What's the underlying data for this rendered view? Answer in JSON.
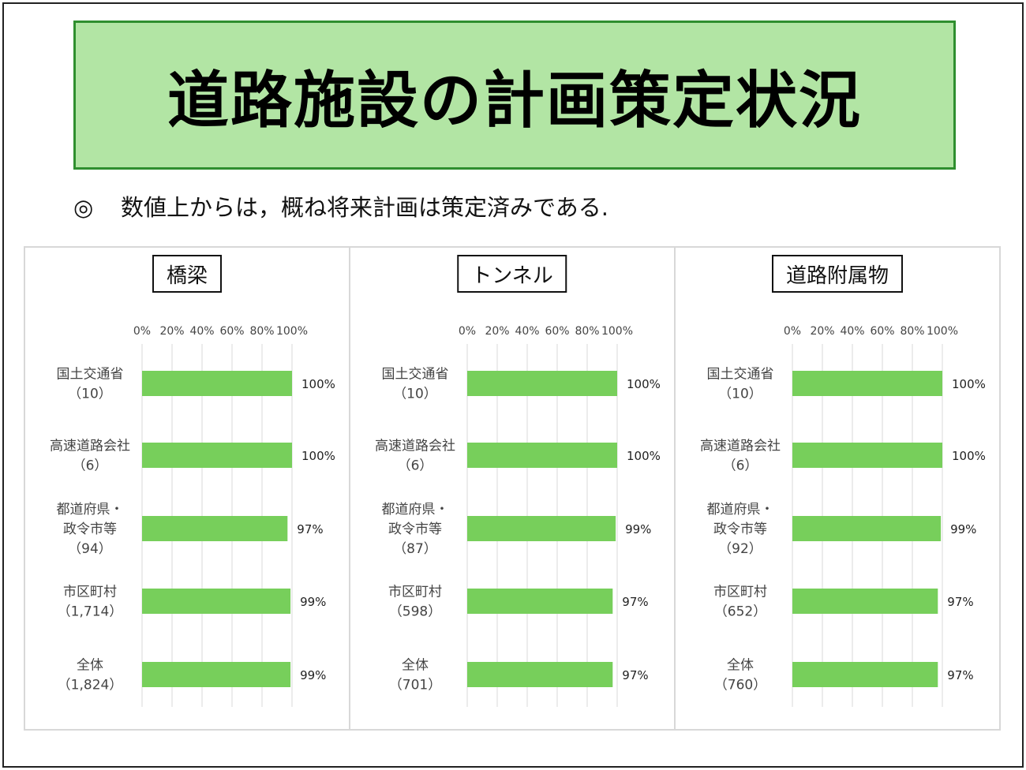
{
  "header": {
    "title": "道路施設の計画策定状況"
  },
  "note": {
    "mark": "◎",
    "text": "数値上からは，概ね将来計画は策定済みである."
  },
  "colors": {
    "bar": "#77cf5b",
    "banner_bg": "#b2e5a4",
    "banner_border": "#2f8f2f",
    "grid": "#d9d9d9"
  },
  "chart_data": [
    {
      "type": "bar",
      "orientation": "horizontal",
      "title": "橋梁",
      "categories": [
        {
          "lines": [
            "国土交通省",
            "（10）"
          ]
        },
        {
          "lines": [
            "高速道路会社",
            "（6）"
          ]
        },
        {
          "lines": [
            "都道府県・",
            "政令市等",
            "（94）"
          ]
        },
        {
          "lines": [
            "市区町村",
            "（1,714）"
          ]
        },
        {
          "lines": [
            "全体",
            "（1,824）"
          ]
        }
      ],
      "values": [
        100,
        100,
        97,
        99,
        99
      ],
      "value_labels": [
        "100%",
        "100%",
        "97%",
        "99%",
        "99%"
      ],
      "xlim": [
        0,
        100
      ],
      "xticks": [
        "0%",
        "20%",
        "40%",
        "60%",
        "80%",
        "100%"
      ],
      "grid": true
    },
    {
      "type": "bar",
      "orientation": "horizontal",
      "title": "トンネル",
      "categories": [
        {
          "lines": [
            "国土交通省",
            "（10）"
          ]
        },
        {
          "lines": [
            "高速道路会社",
            "（6）"
          ]
        },
        {
          "lines": [
            "都道府県・",
            "政令市等",
            "（87）"
          ]
        },
        {
          "lines": [
            "市区町村",
            "（598）"
          ]
        },
        {
          "lines": [
            "全体",
            "（701）"
          ]
        }
      ],
      "values": [
        100,
        100,
        99,
        97,
        97
      ],
      "value_labels": [
        "100%",
        "100%",
        "99%",
        "97%",
        "97%"
      ],
      "xlim": [
        0,
        100
      ],
      "xticks": [
        "0%",
        "20%",
        "40%",
        "60%",
        "80%",
        "100%"
      ],
      "grid": true
    },
    {
      "type": "bar",
      "orientation": "horizontal",
      "title": "道路附属物",
      "categories": [
        {
          "lines": [
            "国土交通省",
            "（10）"
          ]
        },
        {
          "lines": [
            "高速道路会社",
            "（6）"
          ]
        },
        {
          "lines": [
            "都道府県・",
            "政令市等",
            "（92）"
          ]
        },
        {
          "lines": [
            "市区町村",
            "（652）"
          ]
        },
        {
          "lines": [
            "全体",
            "（760）"
          ]
        }
      ],
      "values": [
        100,
        100,
        99,
        97,
        97
      ],
      "value_labels": [
        "100%",
        "100%",
        "99%",
        "97%",
        "97%"
      ],
      "xlim": [
        0,
        100
      ],
      "xticks": [
        "0%",
        "20%",
        "40%",
        "60%",
        "80%",
        "100%"
      ],
      "grid": true
    }
  ]
}
